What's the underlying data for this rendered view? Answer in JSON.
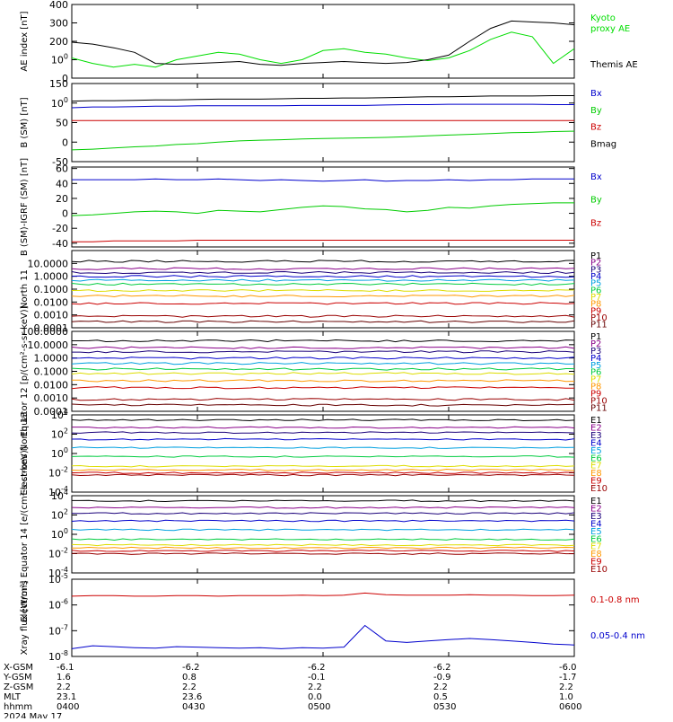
{
  "chart_data": [
    {
      "type": "line",
      "ylabel": "AE index [nT]",
      "ylim": [
        0,
        400
      ],
      "yticks": [
        0,
        100,
        200,
        300,
        400
      ],
      "x": [
        "04:00",
        "04:05",
        "04:10",
        "04:15",
        "04:20",
        "04:25",
        "04:30",
        "04:35",
        "04:40",
        "04:45",
        "04:50",
        "04:55",
        "05:00",
        "05:05",
        "05:10",
        "05:15",
        "05:20",
        "05:25",
        "05:30",
        "05:35",
        "05:40",
        "05:45",
        "05:50",
        "05:55",
        "06:00"
      ],
      "series": [
        {
          "name": "Kyoto proxy AE",
          "color": "#00dd00",
          "values": [
            110,
            80,
            60,
            75,
            60,
            100,
            120,
            140,
            130,
            100,
            80,
            100,
            150,
            160,
            140,
            130,
            110,
            95,
            110,
            150,
            210,
            250,
            225,
            80,
            160
          ]
        },
        {
          "name": "Themis AE",
          "color": "#000000",
          "values": [
            195,
            185,
            165,
            140,
            80,
            75,
            80,
            85,
            90,
            75,
            70,
            80,
            85,
            90,
            85,
            80,
            85,
            100,
            125,
            200,
            270,
            310,
            305,
            300,
            290
          ]
        }
      ]
    },
    {
      "type": "line",
      "ylabel": "B (SM) [nT]",
      "ylim": [
        -50,
        150
      ],
      "yticks": [
        -50,
        0,
        50,
        100,
        150
      ],
      "series": [
        {
          "name": "Bx",
          "color": "#0000cc",
          "values": [
            88,
            90,
            90,
            91,
            92,
            92,
            93,
            93,
            93,
            93,
            93,
            94,
            94,
            94,
            94,
            95,
            96,
            96,
            97,
            97,
            97,
            97,
            97,
            96,
            96
          ]
        },
        {
          "name": "By",
          "color": "#00cc00",
          "values": [
            -20,
            -18,
            -15,
            -12,
            -10,
            -6,
            -4,
            0,
            3,
            5,
            6,
            8,
            9,
            10,
            11,
            12,
            14,
            16,
            18,
            20,
            22,
            24,
            25,
            27,
            28
          ]
        },
        {
          "name": "Bz",
          "color": "#cc0000",
          "values": [
            55,
            55,
            55,
            55,
            55,
            55,
            55,
            55,
            55,
            55,
            55,
            55,
            55,
            55,
            55,
            55,
            55,
            55,
            55,
            55,
            55,
            55,
            55,
            55,
            55
          ]
        },
        {
          "name": "Bmag",
          "color": "#000000",
          "values": [
            105,
            106,
            106,
            107,
            108,
            108,
            109,
            110,
            110,
            110,
            111,
            112,
            112,
            113,
            113,
            114,
            115,
            116,
            116,
            117,
            118,
            118,
            118,
            119,
            119
          ]
        }
      ]
    },
    {
      "type": "line",
      "ylabel": "B (SM)-IGRF (SM) [nT]",
      "ylim": [
        -45,
        62
      ],
      "yticks": [
        -40,
        -20,
        0,
        20,
        40,
        60
      ],
      "series": [
        {
          "name": "Bx",
          "color": "#0000cc",
          "values": [
            45,
            45,
            45,
            45,
            46,
            45,
            45,
            46,
            45,
            44,
            45,
            44,
            43,
            44,
            45,
            43,
            44,
            44,
            45,
            44,
            45,
            45,
            46,
            46,
            46
          ]
        },
        {
          "name": "By",
          "color": "#00cc00",
          "values": [
            -3,
            -2,
            0,
            2,
            3,
            2,
            0,
            4,
            3,
            2,
            5,
            8,
            10,
            9,
            6,
            5,
            2,
            4,
            8,
            7,
            10,
            12,
            13,
            14,
            14
          ]
        },
        {
          "name": "Bz",
          "color": "#cc0000",
          "values": [
            -38,
            -38,
            -37,
            -37,
            -37,
            -37,
            -36,
            -36,
            -36,
            -36,
            -36,
            -36,
            -36,
            -36,
            -36,
            -36,
            -36,
            -36,
            -36,
            -36,
            -36,
            -36,
            -36,
            -36,
            -36
          ]
        }
      ]
    },
    {
      "type": "line",
      "ylabel": "North 11",
      "scale": "log",
      "ylim": [
        0.0001,
        100
      ],
      "yticks": [
        "0.0001",
        "0.0010",
        "0.0100",
        "0.1000",
        "1.0000",
        "10.0000"
      ],
      "series": [
        {
          "name": "P1",
          "color": "#000000",
          "level": 15
        },
        {
          "name": "P2",
          "color": "#880088",
          "level": 4
        },
        {
          "name": "P3",
          "color": "#1a007a",
          "level": 2.0
        },
        {
          "name": "P4",
          "color": "#0000cc",
          "level": 1.0
        },
        {
          "name": "P5",
          "color": "#00a0e0",
          "level": 0.5
        },
        {
          "name": "P6",
          "color": "#00cc40",
          "level": 0.25
        },
        {
          "name": "P7",
          "color": "#dddd00",
          "level": 0.08
        },
        {
          "name": "P8",
          "color": "#ff9900",
          "level": 0.03
        },
        {
          "name": "P9",
          "color": "#cc0000",
          "level": 0.008
        },
        {
          "name": "P10",
          "color": "#990000",
          "level": 0.0008
        },
        {
          "name": "P11",
          "color": "#660000",
          "level": 0.0003
        }
      ]
    },
    {
      "type": "line",
      "ylabel": "Equator 12 [p/(cm²-s-sr-keV)]",
      "scale": "log",
      "ylim": [
        0.0001,
        100
      ],
      "yticks": [
        "0.0001",
        "0.0010",
        "0.0100",
        "0.1000",
        "1.0000",
        "10.0000",
        "100.0000"
      ],
      "series": [
        {
          "name": "P1",
          "color": "#000000",
          "level": 20
        },
        {
          "name": "P2",
          "color": "#880088",
          "level": 6
        },
        {
          "name": "P3",
          "color": "#1a007a",
          "level": 3
        },
        {
          "name": "P4",
          "color": "#0000cc",
          "level": 1.0
        },
        {
          "name": "P5",
          "color": "#00a0e0",
          "level": 0.4
        },
        {
          "name": "P6",
          "color": "#00cc40",
          "level": 0.15
        },
        {
          "name": "P7",
          "color": "#dddd00",
          "level": 0.07
        },
        {
          "name": "P8",
          "color": "#ff9900",
          "level": 0.02
        },
        {
          "name": "P9",
          "color": "#cc0000",
          "level": 0.006
        },
        {
          "name": "P10",
          "color": "#990000",
          "level": 0.0008
        },
        {
          "name": "P11",
          "color": "#660000",
          "level": 0.0003
        }
      ]
    },
    {
      "type": "line",
      "ylabel": "Electrons North 13",
      "scale": "log",
      "ylim": [
        0.0001,
        10000
      ],
      "yticks": [
        "10-4",
        "10-2",
        "100",
        "102",
        "104"
      ],
      "series": [
        {
          "name": "E1",
          "color": "#000000",
          "level": 3000
        },
        {
          "name": "E2",
          "color": "#880088",
          "level": 500
        },
        {
          "name": "E3",
          "color": "#1a007a",
          "level": 150
        },
        {
          "name": "E4",
          "color": "#0000cc",
          "level": 30
        },
        {
          "name": "E5",
          "color": "#00a0e0",
          "level": 4
        },
        {
          "name": "E6",
          "color": "#00cc40",
          "level": 0.5
        },
        {
          "name": "E7",
          "color": "#dddd00",
          "level": 0.05
        },
        {
          "name": "E8",
          "color": "#ff9900",
          "level": 0.02
        },
        {
          "name": "E9",
          "color": "#cc0000",
          "level": 0.01
        },
        {
          "name": "E10",
          "color": "#990000",
          "level": 0.006
        }
      ]
    },
    {
      "type": "line",
      "ylabel": "Electrons Equator 14 [e/(cm²-s-sr-keV)]",
      "scale": "log",
      "ylim": [
        0.0001,
        10000
      ],
      "yticks": [
        "10-4",
        "10-2",
        "100",
        "102",
        "104"
      ],
      "series": [
        {
          "name": "E1",
          "color": "#000000",
          "level": 3000
        },
        {
          "name": "E2",
          "color": "#880088",
          "level": 600
        },
        {
          "name": "E3",
          "color": "#1a007a",
          "level": 150
        },
        {
          "name": "E4",
          "color": "#0000cc",
          "level": 25
        },
        {
          "name": "E5",
          "color": "#00a0e0",
          "level": 3
        },
        {
          "name": "E6",
          "color": "#00cc40",
          "level": 0.3
        },
        {
          "name": "E7",
          "color": "#dddd00",
          "level": 0.08
        },
        {
          "name": "E8",
          "color": "#ff9900",
          "level": 0.04
        },
        {
          "name": "E9",
          "color": "#cc0000",
          "level": 0.02
        },
        {
          "name": "E10",
          "color": "#990000",
          "level": 0.01
        }
      ]
    },
    {
      "type": "line",
      "ylabel": "Xray flux [W/m²]",
      "scale": "log",
      "ylim": [
        1e-08,
        1e-05
      ],
      "yticks": [
        "10-8",
        "10-7",
        "10-6",
        "10-5"
      ],
      "series": [
        {
          "name": "0.1-0.8 nm",
          "color": "#cc0000",
          "values": [
            2.2e-06,
            2.3e-06,
            2.3e-06,
            2.2e-06,
            2.2e-06,
            2.3e-06,
            2.3e-06,
            2.2e-06,
            2.3e-06,
            2.3e-06,
            2.3e-06,
            2.4e-06,
            2.3e-06,
            2.4e-06,
            2.9e-06,
            2.5e-06,
            2.4e-06,
            2.4e-06,
            2.4e-06,
            2.5e-06,
            2.4e-06,
            2.4e-06,
            2.3e-06,
            2.3e-06,
            2.4e-06
          ]
        },
        {
          "name": "0.05-0.4 nm",
          "color": "#0000cc",
          "values": [
            2e-08,
            2.6e-08,
            2.4e-08,
            2.2e-08,
            2.1e-08,
            2.4e-08,
            2.3e-08,
            2.2e-08,
            2.1e-08,
            2.2e-08,
            2e-08,
            2.2e-08,
            2.1e-08,
            2.3e-08,
            1.6e-07,
            4e-08,
            3.5e-08,
            4e-08,
            4.5e-08,
            5e-08,
            4.5e-08,
            4e-08,
            3.5e-08,
            3e-08,
            2.8e-08
          ]
        }
      ]
    }
  ],
  "orbit_table": {
    "row_labels": [
      "X-GSM",
      "Y-GSM",
      "Z-GSM",
      "MLT",
      "hhmm"
    ],
    "columns": [
      {
        "values": [
          "-6.1",
          "1.6",
          "2.2",
          "23.1",
          "0400"
        ]
      },
      {
        "values": [
          "-6.2",
          "0.8",
          "2.2",
          "23.6",
          "0430"
        ]
      },
      {
        "values": [
          "-6.2",
          "-0.1",
          "2.2",
          "0.0",
          "0500"
        ]
      },
      {
        "values": [
          "-6.2",
          "-0.9",
          "2.2",
          "0.5",
          "0530"
        ]
      },
      {
        "values": [
          "-6.0",
          "-1.7",
          "2.2",
          "1.0",
          "0600"
        ]
      }
    ],
    "date": "2024 May 17"
  }
}
